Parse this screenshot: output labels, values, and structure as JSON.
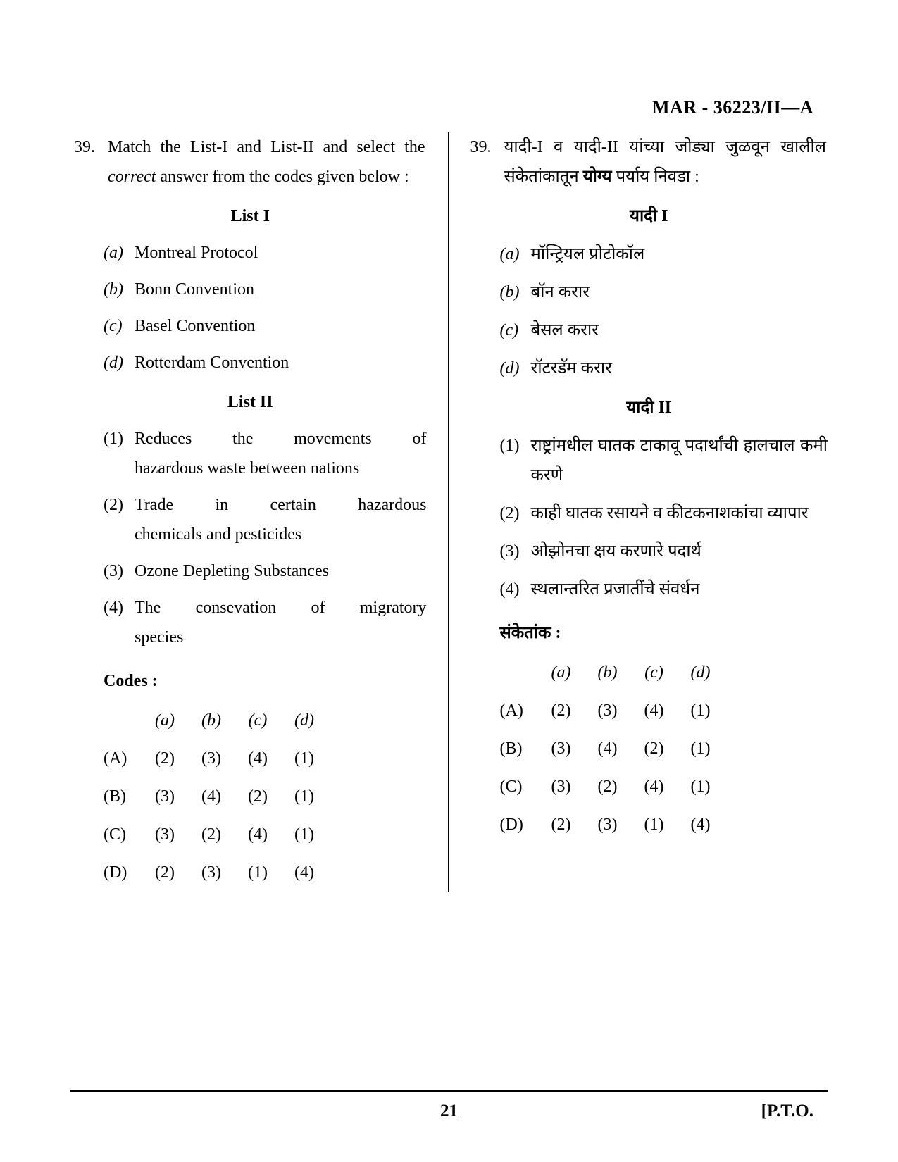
{
  "header_code": "MAR - 36223/II—A",
  "footer": {
    "page_number": "21",
    "pto": "[P.T.O."
  },
  "left": {
    "qnum": "39.",
    "qtext_pre": "Match the List-I and List-II and select the ",
    "qtext_ital": "correct",
    "qtext_post": " answer from the codes given below :",
    "list1_title": "List I",
    "list1": [
      {
        "label": "(a)",
        "text": "Montreal Protocol"
      },
      {
        "label": "(b)",
        "text": "Bonn Convention"
      },
      {
        "label": "(c)",
        "text": "Basel Convention"
      },
      {
        "label": "(d)",
        "text": "Rotterdam Convention"
      }
    ],
    "list2_title": "List II",
    "list2": [
      {
        "label": "(1)",
        "line1": "Reduces the movements of",
        "line2": "hazardous waste between nations"
      },
      {
        "label": "(2)",
        "line1": "Trade in certain hazardous",
        "line2": "chemicals and pesticides"
      },
      {
        "label": "(3)",
        "text": "Ozone Depleting Substances"
      },
      {
        "label": "(4)",
        "line1": "The consevation of migratory",
        "line2": "species"
      }
    ],
    "codes_heading": "Codes :",
    "codes_header": [
      "(a)",
      "(b)",
      "(c)",
      "(d)"
    ],
    "codes_rows": [
      {
        "label": "(A)",
        "cells": [
          "(2)",
          "(3)",
          "(4)",
          "(1)"
        ]
      },
      {
        "label": "(B)",
        "cells": [
          "(3)",
          "(4)",
          "(2)",
          "(1)"
        ]
      },
      {
        "label": "(C)",
        "cells": [
          "(3)",
          "(2)",
          "(4)",
          "(1)"
        ]
      },
      {
        "label": "(D)",
        "cells": [
          "(2)",
          "(3)",
          "(1)",
          "(4)"
        ]
      }
    ]
  },
  "right": {
    "qnum": "39.",
    "qtext_pre": "यादी-I व यादी-II यांच्या जोड्या जुळवून खालील संकेतांकातून ",
    "qtext_bold": "योग्य",
    "qtext_post": " पर्याय निवडा :",
    "list1_title": "यादी I",
    "list1": [
      {
        "label": "(a)",
        "text": "मॉन्ट्रियल प्रोटोकॉल"
      },
      {
        "label": "(b)",
        "text": "बॉन करार"
      },
      {
        "label": "(c)",
        "text": "बेसल करार"
      },
      {
        "label": "(d)",
        "text": "रॉटरडॅम करार"
      }
    ],
    "list2_title": "यादी II",
    "list2": [
      {
        "label": "(1)",
        "text": "राष्ट्रांमधील घातक टाकावू पदार्थांची हालचाल कमी करणे"
      },
      {
        "label": "(2)",
        "text": "काही घातक रसायने व कीटकनाशकांचा व्यापार"
      },
      {
        "label": "(3)",
        "text": "ओझोनचा क्षय करणारे पदार्थ"
      },
      {
        "label": "(4)",
        "text": "स्थलान्तरित प्रजातींचे संवर्धन"
      }
    ],
    "codes_heading": "संकेतांक :",
    "codes_header": [
      "(a)",
      "(b)",
      "(c)",
      "(d)"
    ],
    "codes_rows": [
      {
        "label": "(A)",
        "cells": [
          "(2)",
          "(3)",
          "(4)",
          "(1)"
        ]
      },
      {
        "label": "(B)",
        "cells": [
          "(3)",
          "(4)",
          "(2)",
          "(1)"
        ]
      },
      {
        "label": "(C)",
        "cells": [
          "(3)",
          "(2)",
          "(4)",
          "(1)"
        ]
      },
      {
        "label": "(D)",
        "cells": [
          "(2)",
          "(3)",
          "(1)",
          "(4)"
        ]
      }
    ]
  }
}
